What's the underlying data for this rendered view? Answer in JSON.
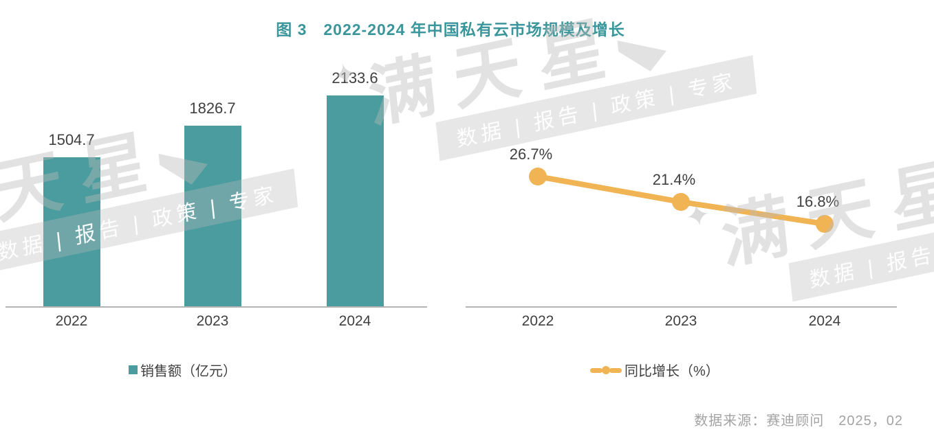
{
  "title": "图 3　2022-2024 年中国私有云市场规模及增长",
  "source": "数据来源：赛迪顾问　2025，02",
  "watermark": {
    "star": "✦",
    "brand": "满天星",
    "tagline": "数据 | 报告 | 政策 | 专家"
  },
  "colors": {
    "title_teal": "#3A969A",
    "bar_teal": "#4A9C9E",
    "line_gold": "#F0B455",
    "axis_gray": "#B3B3B3",
    "label_gray": "#3F3F3F",
    "source_gray": "#A3A3A3"
  },
  "chart_data": [
    {
      "type": "bar",
      "title": "销售额（亿元）",
      "legend": "销售额（亿元）",
      "categories": [
        "2022",
        "2023",
        "2024"
      ],
      "values": [
        1504.7,
        1826.7,
        2133.6
      ],
      "data_labels": [
        "1504.7",
        "1826.7",
        "2133.6"
      ],
      "xlabel": "",
      "ylabel": "亿元",
      "ylim": [
        0,
        2300
      ],
      "grid": false,
      "legend_position": "bottom",
      "bar_color": "#4A9C9E"
    },
    {
      "type": "line",
      "title": "同比增长（%）",
      "legend": "同比增长（%）",
      "categories": [
        "2022",
        "2023",
        "2024"
      ],
      "values": [
        26.7,
        21.4,
        16.8
      ],
      "data_labels": [
        "26.7%",
        "21.4%",
        "16.8%"
      ],
      "xlabel": "",
      "ylabel": "%",
      "ylim": [
        0,
        35
      ],
      "grid": false,
      "legend_position": "bottom",
      "line_color": "#F0B455"
    }
  ]
}
